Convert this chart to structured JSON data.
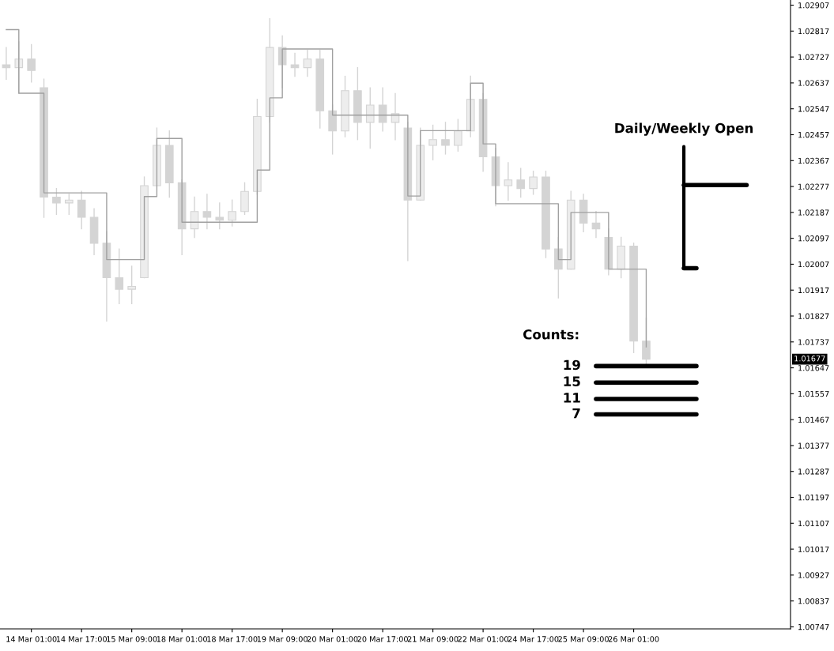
{
  "chart_data": {
    "type": "candlestick",
    "categories": [
      null,
      null,
      "14 Mar 01:00",
      null,
      null,
      null,
      "14 Mar 17:00",
      null,
      null,
      null,
      "15 Mar 09:00",
      null,
      null,
      null,
      "18 Mar 01:00",
      null,
      null,
      null,
      "18 Mar 17:00",
      null,
      null,
      null,
      "19 Mar 09:00",
      null,
      null,
      null,
      "20 Mar 01:00",
      null,
      null,
      null,
      "20 Mar 17:00",
      null,
      null,
      null,
      "21 Mar 09:00",
      null,
      null,
      null,
      "22 Mar 01:00",
      null,
      null,
      null,
      "24 Mar 17:00",
      null,
      null,
      null,
      "25 Mar 09:00",
      null,
      null,
      null,
      "26 Mar 01:00",
      null,
      null,
      null,
      null,
      null,
      null,
      null,
      null,
      null,
      null,
      null,
      null
    ],
    "ohlc": [
      [
        1.027,
        1.0276,
        1.0265,
        1.0269
      ],
      [
        1.0269,
        1.0278,
        1.026,
        1.0272
      ],
      [
        1.0272,
        1.0277,
        1.0264,
        1.0268
      ],
      [
        1.0262,
        1.0265,
        1.0217,
        1.0224
      ],
      [
        1.0224,
        1.0227,
        1.0218,
        1.0222
      ],
      [
        1.0222,
        1.0225,
        1.0218,
        1.0223
      ],
      [
        1.0223,
        1.0226,
        1.0213,
        1.0217
      ],
      [
        1.0217,
        1.022,
        1.0204,
        1.0208
      ],
      [
        1.0208,
        1.0212,
        1.0181,
        1.0196
      ],
      [
        1.0196,
        1.0206,
        1.0187,
        1.0192
      ],
      [
        1.0192,
        1.02,
        1.0187,
        1.0193
      ],
      [
        1.0196,
        1.0231,
        1.0196,
        1.0228
      ],
      [
        1.0228,
        1.0248,
        1.0228,
        1.0242
      ],
      [
        1.0242,
        1.0247,
        1.0224,
        1.0229
      ],
      [
        1.0229,
        1.023,
        1.0204,
        1.0213
      ],
      [
        1.0213,
        1.0224,
        1.021,
        1.0219
      ],
      [
        1.0219,
        1.0225,
        1.0213,
        1.0217
      ],
      [
        1.0217,
        1.0222,
        1.0213,
        1.0216
      ],
      [
        1.0216,
        1.0223,
        1.0214,
        1.0219
      ],
      [
        1.0219,
        1.0229,
        1.0218,
        1.0226
      ],
      [
        1.0226,
        1.0258,
        1.0225,
        1.0252
      ],
      [
        1.0252,
        1.0286,
        1.025,
        1.0276
      ],
      [
        1.0276,
        1.028,
        1.0262,
        1.027
      ],
      [
        1.027,
        1.0274,
        1.0266,
        1.0269
      ],
      [
        1.0269,
        1.0275,
        1.0266,
        1.0272
      ],
      [
        1.0272,
        1.0275,
        1.0248,
        1.0254
      ],
      [
        1.0254,
        1.0256,
        1.0239,
        1.0247
      ],
      [
        1.0247,
        1.0266,
        1.0245,
        1.0261
      ],
      [
        1.0261,
        1.0269,
        1.0244,
        1.025
      ],
      [
        1.025,
        1.0262,
        1.0241,
        1.0256
      ],
      [
        1.0256,
        1.0262,
        1.0247,
        1.025
      ],
      [
        1.025,
        1.026,
        1.0244,
        1.0253
      ],
      [
        1.0248,
        1.025,
        1.0202,
        1.0223
      ],
      [
        1.0223,
        1.0248,
        1.0223,
        1.0242
      ],
      [
        1.0242,
        1.0249,
        1.0237,
        1.0244
      ],
      [
        1.0244,
        1.025,
        1.0239,
        1.0242
      ],
      [
        1.0242,
        1.0251,
        1.024,
        1.0247
      ],
      [
        1.0247,
        1.0266,
        1.0245,
        1.0258
      ],
      [
        1.0258,
        1.026,
        1.0233,
        1.0238
      ],
      [
        1.0238,
        1.0241,
        1.0221,
        1.0228
      ],
      [
        1.0228,
        1.0236,
        1.0223,
        1.023
      ],
      [
        1.023,
        1.0234,
        1.0224,
        1.0227
      ],
      [
        1.0227,
        1.0233,
        1.0225,
        1.0231
      ],
      [
        1.0231,
        1.0233,
        1.0203,
        1.0206
      ],
      [
        1.0206,
        1.021,
        1.0189,
        1.0199
      ],
      [
        1.0199,
        1.0226,
        1.0199,
        1.0223
      ],
      [
        1.0223,
        1.0225,
        1.0212,
        1.0215
      ],
      [
        1.0215,
        1.0219,
        1.021,
        1.0213
      ],
      [
        1.021,
        1.0213,
        1.0197,
        1.0199
      ],
      [
        1.0199,
        1.021,
        1.0196,
        1.0207
      ],
      [
        1.0207,
        1.0208,
        1.017,
        1.0174
      ],
      [
        1.0174,
        1.0182,
        1.0165,
        1.01677
      ],
      null,
      null,
      null,
      null,
      null,
      null,
      null,
      null,
      null,
      null,
      null
    ],
    "color": "#d4d4d4",
    "series": [
      {
        "type": "step",
        "color": "#a0a0a0",
        "values": [
          1.02822,
          1.02601,
          1.02601,
          1.02255,
          1.02255,
          1.02255,
          1.02255,
          1.02255,
          1.02023,
          1.02023,
          1.02023,
          1.02242,
          1.02444,
          1.02444,
          1.02153,
          1.02153,
          1.02153,
          1.02153,
          1.02153,
          1.02153,
          1.02334,
          1.02585,
          1.02755,
          1.02755,
          1.02755,
          1.02755,
          1.02525,
          1.02525,
          1.02525,
          1.02525,
          1.02525,
          1.02525,
          1.02244,
          1.02471,
          1.02471,
          1.02471,
          1.02471,
          1.02636,
          1.02425,
          1.02217,
          1.02217,
          1.02217,
          1.02217,
          1.02217,
          1.02023,
          1.02187,
          1.02187,
          1.02187,
          1.0199,
          1.0199,
          1.0199,
          1.0172,
          null,
          null,
          null,
          null,
          null,
          null,
          null,
          null,
          null,
          null,
          null
        ]
      },
      {
        "type": "line",
        "name": "19",
        "color": "#000000",
        "values": [
          null,
          null,
          null,
          null,
          null,
          null,
          null,
          null,
          null,
          null,
          null,
          null,
          null,
          null,
          null,
          null,
          null,
          null,
          null,
          null,
          null,
          null,
          null,
          null,
          null,
          null,
          null,
          null,
          null,
          null,
          null,
          null,
          null,
          null,
          null,
          null,
          null,
          null,
          null,
          null,
          null,
          null,
          null,
          null,
          null,
          null,
          null,
          1.01653,
          1.01653,
          1.01653,
          1.01653,
          1.01653,
          1.01653,
          1.01653,
          1.01653,
          1.01653,
          null,
          null,
          null,
          null,
          null,
          null,
          null
        ]
      },
      {
        "type": "line",
        "name": "15",
        "color": "#000000",
        "values": [
          null,
          null,
          null,
          null,
          null,
          null,
          null,
          null,
          null,
          null,
          null,
          null,
          null,
          null,
          null,
          null,
          null,
          null,
          null,
          null,
          null,
          null,
          null,
          null,
          null,
          null,
          null,
          null,
          null,
          null,
          null,
          null,
          null,
          null,
          null,
          null,
          null,
          null,
          null,
          null,
          null,
          null,
          null,
          null,
          null,
          null,
          null,
          1.01596,
          1.01596,
          1.01596,
          1.01596,
          1.01596,
          1.01596,
          1.01596,
          1.01596,
          1.01596,
          null,
          null,
          null,
          null,
          null,
          null,
          null
        ]
      },
      {
        "type": "line",
        "name": "11",
        "color": "#000000",
        "values": [
          null,
          null,
          null,
          null,
          null,
          null,
          null,
          null,
          null,
          null,
          null,
          null,
          null,
          null,
          null,
          null,
          null,
          null,
          null,
          null,
          null,
          null,
          null,
          null,
          null,
          null,
          null,
          null,
          null,
          null,
          null,
          null,
          null,
          null,
          null,
          null,
          null,
          null,
          null,
          null,
          null,
          null,
          null,
          null,
          null,
          null,
          null,
          1.01539,
          1.01539,
          1.01539,
          1.01539,
          1.01539,
          1.01539,
          1.01539,
          1.01539,
          1.01539,
          null,
          null,
          null,
          null,
          null,
          null,
          null
        ]
      },
      {
        "type": "line",
        "name": "7",
        "color": "#000000",
        "values": [
          null,
          null,
          null,
          null,
          null,
          null,
          null,
          null,
          null,
          null,
          null,
          null,
          null,
          null,
          null,
          null,
          null,
          null,
          null,
          null,
          null,
          null,
          null,
          null,
          null,
          null,
          null,
          null,
          null,
          null,
          null,
          null,
          null,
          null,
          null,
          null,
          null,
          null,
          null,
          null,
          null,
          null,
          null,
          null,
          null,
          null,
          null,
          1.01485,
          1.01485,
          1.01485,
          1.01485,
          1.01485,
          1.01485,
          1.01485,
          1.01485,
          1.01485,
          null,
          null,
          null,
          null,
          null,
          null,
          null
        ]
      },
      {
        "type": "line",
        "color": "#000000",
        "values": [
          null,
          null,
          null,
          null,
          null,
          null,
          null,
          null,
          null,
          null,
          null,
          null,
          null,
          null,
          null,
          null,
          null,
          null,
          null,
          null,
          null,
          null,
          null,
          null,
          null,
          null,
          null,
          null,
          null,
          null,
          null,
          null,
          null,
          null,
          null,
          null,
          null,
          null,
          null,
          null,
          null,
          null,
          null,
          null,
          null,
          null,
          null,
          null,
          null,
          null,
          null,
          null,
          null,
          null,
          1.02282,
          1.02282,
          1.02282,
          1.02282,
          1.02282,
          1.02282,
          null,
          null,
          null
        ]
      },
      {
        "type": "line",
        "color": "#000000",
        "values": [
          null,
          null,
          null,
          null,
          null,
          null,
          null,
          null,
          null,
          null,
          null,
          null,
          null,
          null,
          null,
          null,
          null,
          null,
          null,
          null,
          null,
          null,
          null,
          null,
          null,
          null,
          null,
          null,
          null,
          null,
          null,
          null,
          null,
          null,
          null,
          null,
          null,
          null,
          null,
          null,
          null,
          null,
          null,
          null,
          null,
          null,
          null,
          null,
          null,
          null,
          null,
          null,
          null,
          null,
          1.01993,
          1.01993,
          null,
          null,
          null,
          null,
          null,
          null,
          null
        ]
      }
    ],
    "annotations": [
      "Counts:",
      {
        "text": "Daily/Weekly Open",
        "y": 1.02282
      },
      "1.01677"
    ],
    "ylim": [
      1.0074,
      1.02925
    ],
    "yticks": [
      1.00747,
      1.00837,
      1.00927,
      1.01017,
      1.01107,
      1.01197,
      1.01287,
      1.01377,
      1.01467,
      1.01557,
      1.01647,
      1.01737,
      1.01827,
      1.01917,
      1.02007,
      1.02097,
      1.02187,
      1.02277,
      1.02367,
      1.02457,
      1.02547,
      1.02637,
      1.02727,
      1.02817,
      1.02907
    ],
    "grid": false,
    "legend": false
  }
}
